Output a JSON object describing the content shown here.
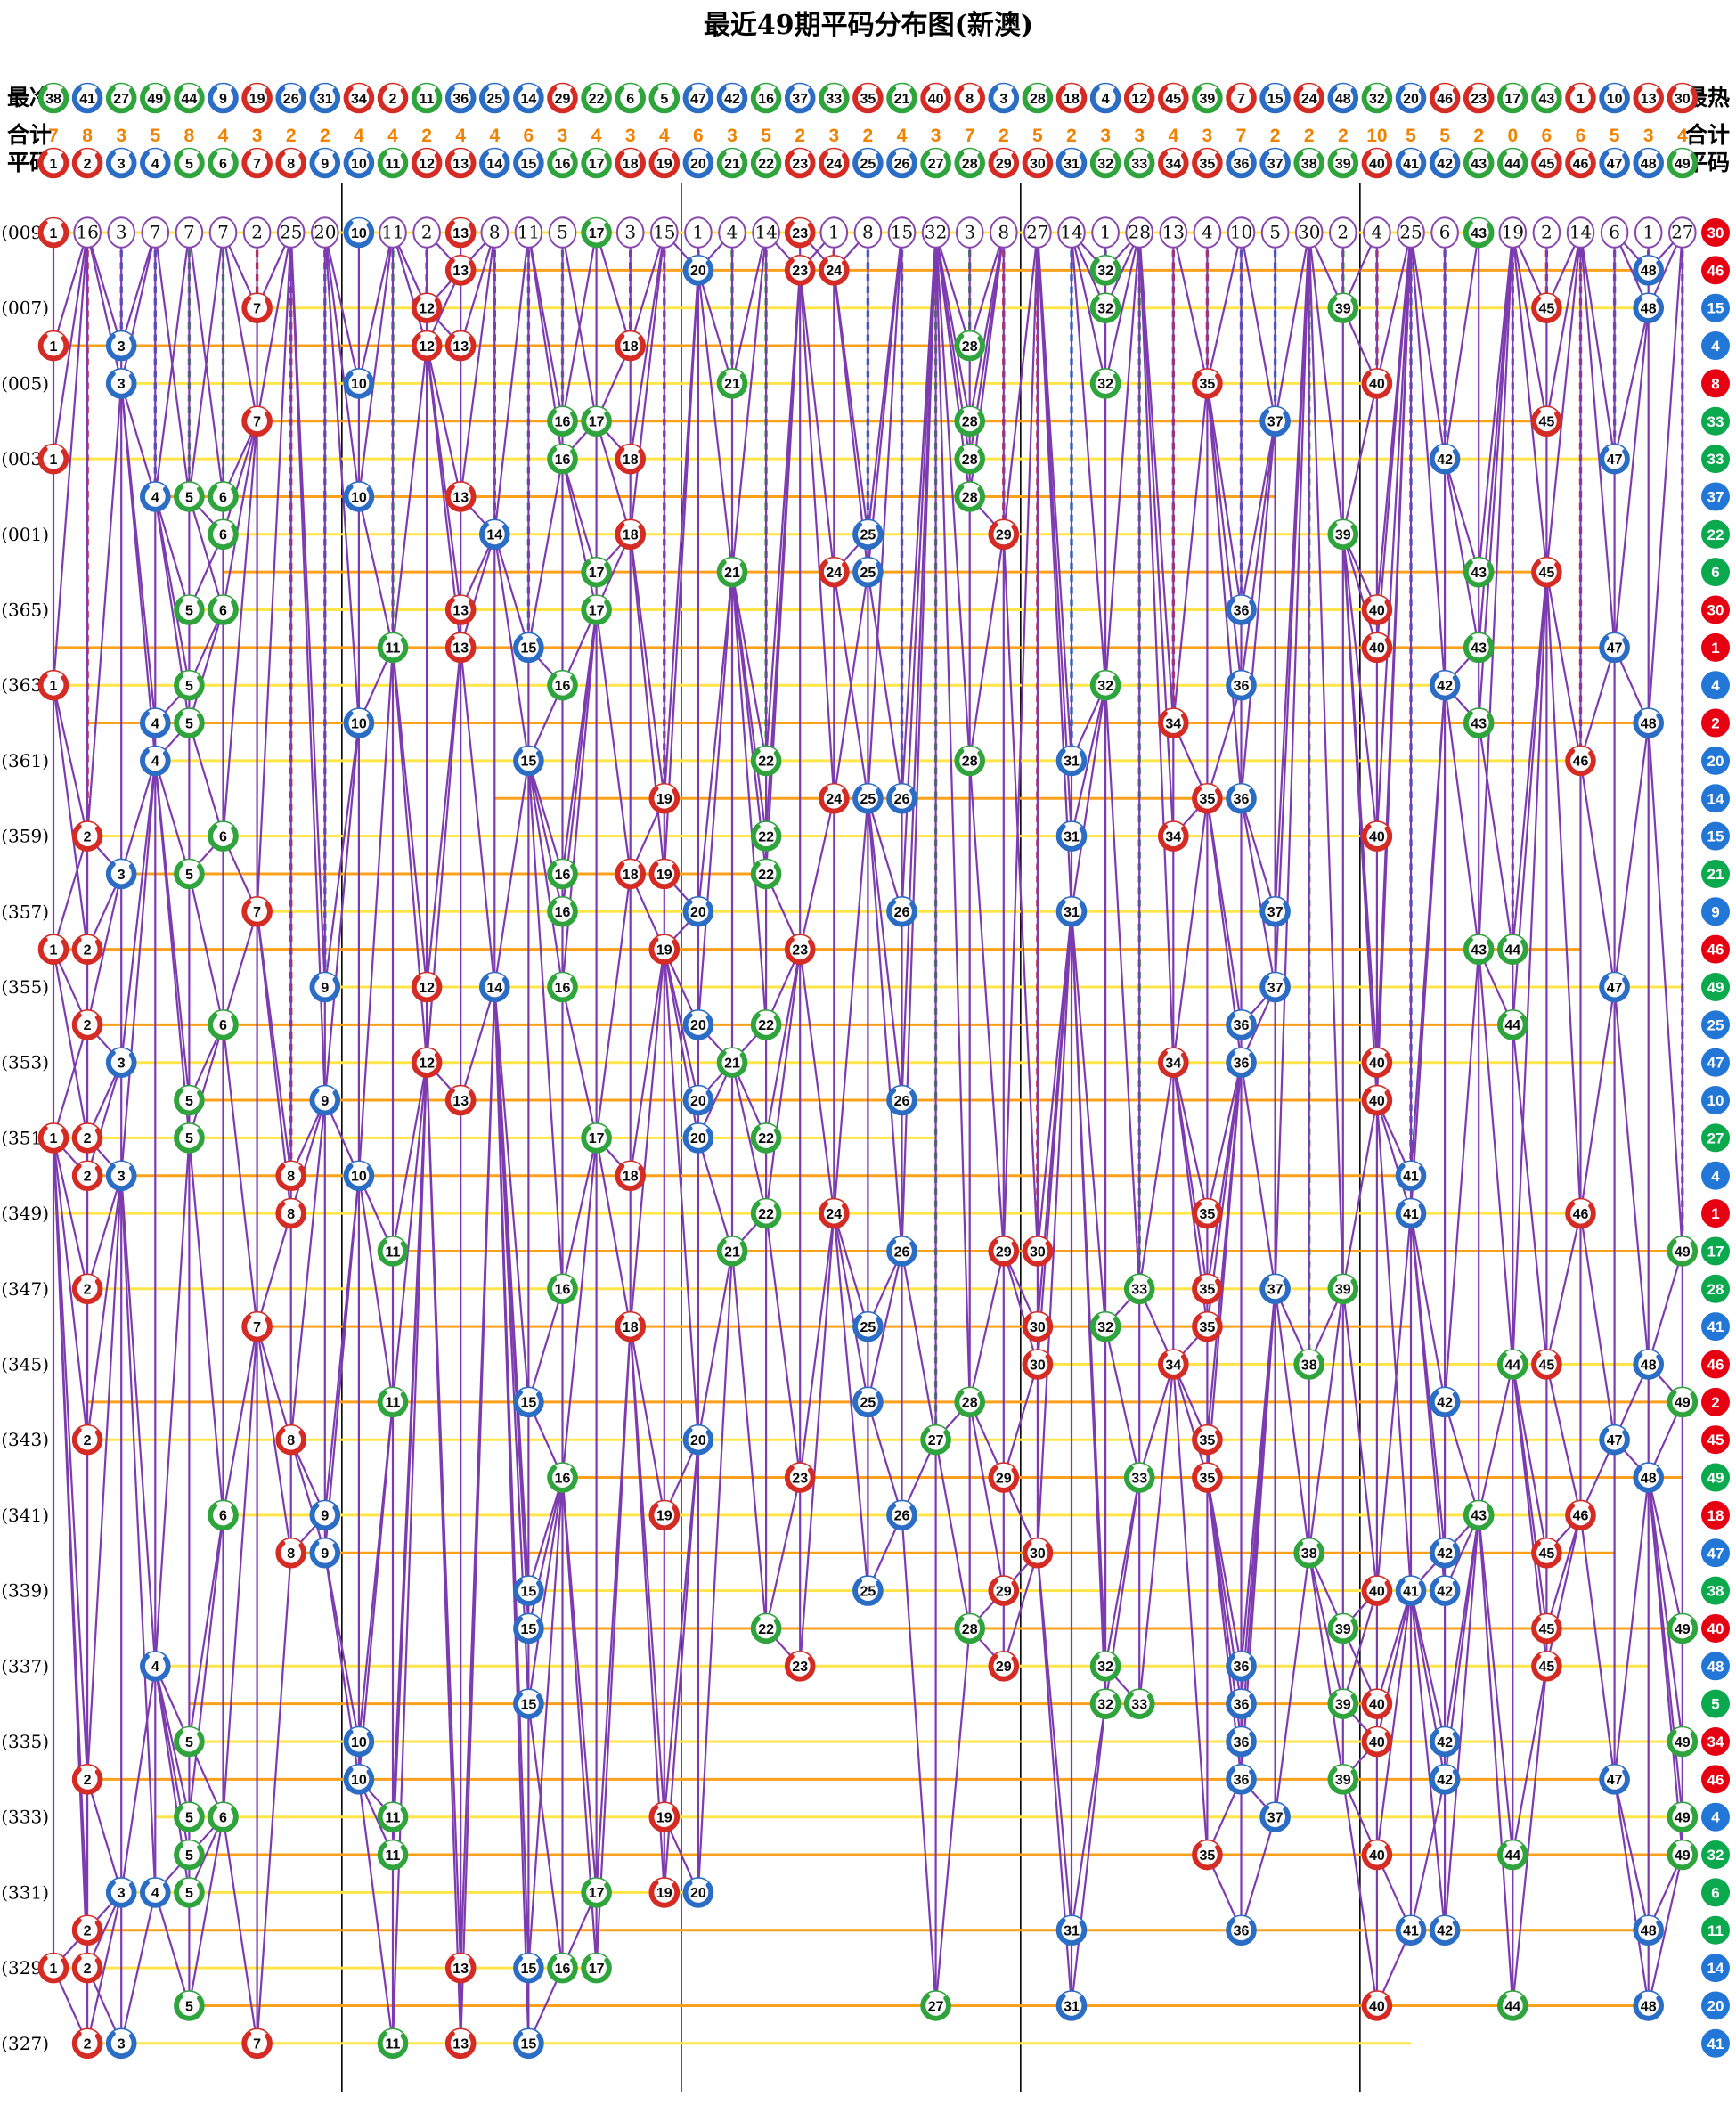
{
  "title": "最近49期平码分布图(新澳)",
  "header": {
    "cold_label": "最冷",
    "hot_label": "最热",
    "total_label": "合计",
    "number_label": "平码",
    "cold_order": [
      38,
      41,
      27,
      49,
      44,
      9,
      19,
      26,
      31,
      34,
      2,
      11,
      36,
      25,
      14,
      29,
      22,
      6,
      5,
      47,
      42,
      16,
      37,
      33,
      35,
      21,
      40,
      8,
      3,
      28,
      18,
      4,
      12,
      45,
      39,
      7,
      15,
      24,
      48,
      32,
      20,
      46,
      23,
      17,
      43,
      1,
      10,
      13,
      30
    ],
    "totals": [
      7,
      8,
      3,
      5,
      8,
      4,
      3,
      2,
      2,
      4,
      4,
      2,
      4,
      4,
      6,
      3,
      4,
      3,
      4,
      6,
      3,
      5,
      2,
      3,
      2,
      4,
      3,
      7,
      2,
      5,
      2,
      3,
      3,
      4,
      3,
      7,
      2,
      2,
      2,
      10,
      5,
      5,
      2,
      0,
      6,
      6,
      5,
      3,
      4
    ],
    "numbers": [
      1,
      2,
      3,
      4,
      5,
      6,
      7,
      8,
      9,
      10,
      11,
      12,
      13,
      14,
      15,
      16,
      17,
      18,
      19,
      20,
      21,
      22,
      23,
      24,
      25,
      26,
      27,
      28,
      29,
      30,
      31,
      32,
      33,
      34,
      35,
      36,
      37,
      38,
      39,
      40,
      41,
      42,
      43,
      44,
      45,
      46,
      47,
      48,
      49
    ]
  },
  "chart_data": {
    "type": "scatter",
    "title": "最近49期平码分布图(新澳)",
    "columns": 49,
    "legend_position": "none",
    "grid": "column-dashes-and-section-dividers",
    "color_groups": {
      "red": [
        1,
        2,
        7,
        8,
        12,
        13,
        18,
        19,
        23,
        24,
        29,
        30,
        34,
        35,
        40,
        45,
        46
      ],
      "blue": [
        3,
        4,
        9,
        10,
        14,
        15,
        20,
        25,
        26,
        31,
        36,
        37,
        41,
        42,
        47,
        48
      ],
      "green": [
        5,
        6,
        11,
        16,
        17,
        21,
        22,
        27,
        28,
        32,
        33,
        38,
        39,
        43,
        44,
        49
      ]
    },
    "colors": {
      "red": "#d42b24",
      "blue": "#2b6cc4",
      "green": "#2fa43c",
      "special_red": "#e60012",
      "special_blue": "#2277d6",
      "special_green": "#0aa94d",
      "row_line_odd": "#ffe54a",
      "row_line_even": "#f9a11b",
      "trend": "#7d3bb0",
      "divider": "#000000",
      "miss_circle_stroke": "#8847ad"
    },
    "section_dividers_after": [
      9,
      19,
      29,
      39
    ],
    "first_row_miss": [
      null,
      16,
      3,
      7,
      7,
      7,
      2,
      25,
      20,
      null,
      11,
      2,
      null,
      8,
      11,
      5,
      null,
      3,
      15,
      1,
      4,
      14,
      null,
      1,
      8,
      15,
      32,
      3,
      8,
      27,
      14,
      1,
      28,
      13,
      4,
      10,
      5,
      30,
      2,
      4,
      25,
      6,
      null,
      19,
      2,
      14,
      6,
      1,
      27
    ],
    "rows": [
      {
        "p": "(009)",
        "b": [
          1,
          10,
          13,
          17,
          23,
          43
        ],
        "s": 30
      },
      {
        "p": null,
        "b": [
          13,
          20,
          23,
          24,
          32,
          48
        ],
        "s": 46
      },
      {
        "p": "(007)",
        "b": [
          7,
          12,
          32,
          39,
          45,
          48
        ],
        "s": 15
      },
      {
        "p": null,
        "b": [
          1,
          3,
          12,
          13,
          18,
          28
        ],
        "s": 4
      },
      {
        "p": "(005)",
        "b": [
          3,
          10,
          21,
          32,
          35,
          40
        ],
        "s": 8
      },
      {
        "p": null,
        "b": [
          7,
          16,
          17,
          28,
          37,
          45
        ],
        "s": 33
      },
      {
        "p": "(003)",
        "b": [
          1,
          16,
          18,
          28,
          42,
          47
        ],
        "s": 33
      },
      {
        "p": null,
        "b": [
          4,
          5,
          6,
          10,
          13,
          28
        ],
        "s": 37
      },
      {
        "p": "(001)",
        "b": [
          6,
          14,
          18,
          25,
          29,
          39
        ],
        "s": 22
      },
      {
        "p": null,
        "b": [
          17,
          21,
          24,
          25,
          43,
          45
        ],
        "s": 6
      },
      {
        "p": "(365)",
        "b": [
          5,
          6,
          13,
          17,
          36,
          40
        ],
        "s": 30
      },
      {
        "p": null,
        "b": [
          11,
          13,
          15,
          40,
          43,
          47
        ],
        "s": 1
      },
      {
        "p": "(363)",
        "b": [
          1,
          5,
          16,
          32,
          36,
          42
        ],
        "s": 4
      },
      {
        "p": null,
        "b": [
          4,
          5,
          10,
          34,
          43,
          48
        ],
        "s": 2
      },
      {
        "p": "(361)",
        "b": [
          4,
          15,
          22,
          28,
          31,
          46
        ],
        "s": 20
      },
      {
        "p": null,
        "b": [
          19,
          24,
          25,
          26,
          35,
          36
        ],
        "s": 14
      },
      {
        "p": "(359)",
        "b": [
          2,
          6,
          22,
          31,
          34,
          40
        ],
        "s": 15
      },
      {
        "p": null,
        "b": [
          3,
          5,
          16,
          18,
          19,
          22
        ],
        "s": 21
      },
      {
        "p": "(357)",
        "b": [
          7,
          16,
          20,
          26,
          31,
          37
        ],
        "s": 9
      },
      {
        "p": null,
        "b": [
          1,
          2,
          19,
          23,
          43,
          44
        ],
        "s": 46
      },
      {
        "p": "(355)",
        "b": [
          9,
          12,
          14,
          16,
          37,
          47
        ],
        "s": 49
      },
      {
        "p": null,
        "b": [
          2,
          6,
          20,
          22,
          36,
          44
        ],
        "s": 25
      },
      {
        "p": "(353)",
        "b": [
          3,
          12,
          21,
          34,
          36,
          40
        ],
        "s": 47
      },
      {
        "p": null,
        "b": [
          5,
          9,
          13,
          20,
          26,
          40
        ],
        "s": 10
      },
      {
        "p": "(351)",
        "b": [
          1,
          2,
          5,
          17,
          20,
          22
        ],
        "s": 27
      },
      {
        "p": null,
        "b": [
          2,
          3,
          8,
          10,
          18,
          41
        ],
        "s": 4
      },
      {
        "p": "(349)",
        "b": [
          8,
          22,
          24,
          35,
          41,
          46
        ],
        "s": 1
      },
      {
        "p": null,
        "b": [
          11,
          21,
          26,
          29,
          30,
          49
        ],
        "s": 17
      },
      {
        "p": "(347)",
        "b": [
          2,
          16,
          33,
          35,
          37,
          39
        ],
        "s": 28
      },
      {
        "p": null,
        "b": [
          7,
          18,
          25,
          30,
          32,
          35
        ],
        "s": 41
      },
      {
        "p": "(345)",
        "b": [
          30,
          34,
          38,
          44,
          45,
          48
        ],
        "s": 46
      },
      {
        "p": null,
        "b": [
          11,
          15,
          25,
          28,
          42,
          49
        ],
        "s": 2
      },
      {
        "p": "(343)",
        "b": [
          2,
          8,
          20,
          27,
          35,
          47
        ],
        "s": 45
      },
      {
        "p": null,
        "b": [
          16,
          23,
          29,
          33,
          35,
          48
        ],
        "s": 49
      },
      {
        "p": "(341)",
        "b": [
          6,
          9,
          19,
          26,
          43,
          46
        ],
        "s": 18
      },
      {
        "p": null,
        "b": [
          8,
          9,
          30,
          38,
          42,
          45
        ],
        "s": 47
      },
      {
        "p": "(339)",
        "b": [
          15,
          25,
          29,
          40,
          41,
          42
        ],
        "s": 38
      },
      {
        "p": null,
        "b": [
          15,
          22,
          28,
          39,
          45,
          49
        ],
        "s": 40
      },
      {
        "p": "(337)",
        "b": [
          4,
          23,
          29,
          32,
          36,
          45
        ],
        "s": 48
      },
      {
        "p": null,
        "b": [
          15,
          32,
          33,
          36,
          39,
          40
        ],
        "s": 5
      },
      {
        "p": "(335)",
        "b": [
          5,
          10,
          36,
          40,
          42,
          49
        ],
        "s": 34
      },
      {
        "p": null,
        "b": [
          2,
          10,
          36,
          39,
          42,
          47
        ],
        "s": 46
      },
      {
        "p": "(333)",
        "b": [
          5,
          6,
          11,
          19,
          37,
          49
        ],
        "s": 4
      },
      {
        "p": null,
        "b": [
          5,
          11,
          35,
          40,
          44,
          49
        ],
        "s": 32
      },
      {
        "p": "(331)",
        "b": [
          3,
          4,
          5,
          17,
          19,
          20
        ],
        "s": 6
      },
      {
        "p": null,
        "b": [
          2,
          31,
          36,
          41,
          42,
          48
        ],
        "s": 11
      },
      {
        "p": "(329)",
        "b": [
          1,
          2,
          13,
          15,
          16,
          17
        ],
        "s": 14
      },
      {
        "p": null,
        "b": [
          5,
          27,
          31,
          40,
          44,
          48
        ],
        "s": 20
      },
      {
        "p": "(327)",
        "b": [
          2,
          3,
          7,
          11,
          13,
          15
        ],
        "s": 41
      }
    ]
  }
}
